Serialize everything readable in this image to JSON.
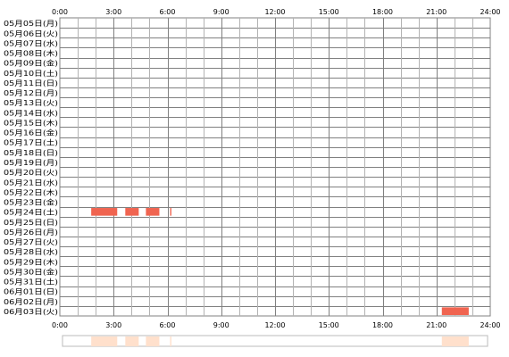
{
  "chart_data": {
    "type": "heatmap",
    "x_ticks": [
      "0:00",
      "3:00",
      "6:00",
      "9:00",
      "12:00",
      "15:00",
      "18:00",
      "21:00",
      "24:00"
    ],
    "xlim": [
      0,
      24
    ],
    "grid": true,
    "rows": [
      "05月05日(月)",
      "05月06日(火)",
      "05月07日(水)",
      "05月08日(木)",
      "05月09日(金)",
      "05月10日(土)",
      "05月11日(日)",
      "05月12日(月)",
      "05月13日(火)",
      "05月14日(水)",
      "05月15日(木)",
      "05月16日(金)",
      "05月17日(土)",
      "05月18日(日)",
      "05月19日(月)",
      "05月20日(火)",
      "05月21日(水)",
      "05月22日(木)",
      "05月23日(金)",
      "05月24日(土)",
      "05月25日(日)",
      "05月26日(月)",
      "05月27日(火)",
      "05月28日(水)",
      "05月29日(木)",
      "05月30日(金)",
      "05月31日(土)",
      "06月01日(日)",
      "06月02日(月)",
      "06月03日(火)"
    ],
    "activity": [
      {
        "row": 19,
        "start": 1.75,
        "end": 3.2
      },
      {
        "row": 19,
        "start": 3.65,
        "end": 4.4
      },
      {
        "row": 19,
        "start": 4.8,
        "end": 5.55
      },
      {
        "row": 19,
        "start": 6.15,
        "end": 6.22
      },
      {
        "row": 29,
        "start": 21.3,
        "end": 22.8
      }
    ],
    "summary": [
      {
        "start": 1.75,
        "end": 3.2
      },
      {
        "start": 3.65,
        "end": 4.4
      },
      {
        "start": 4.8,
        "end": 5.55
      },
      {
        "start": 6.15,
        "end": 6.22
      },
      {
        "start": 21.3,
        "end": 22.8
      }
    ],
    "colors": {
      "grid": "#808080",
      "minor_grid": "#b3b3b3",
      "activity": "#f06450",
      "summary": "#ffe0cc",
      "summary_border": "#bbbbbb"
    }
  }
}
